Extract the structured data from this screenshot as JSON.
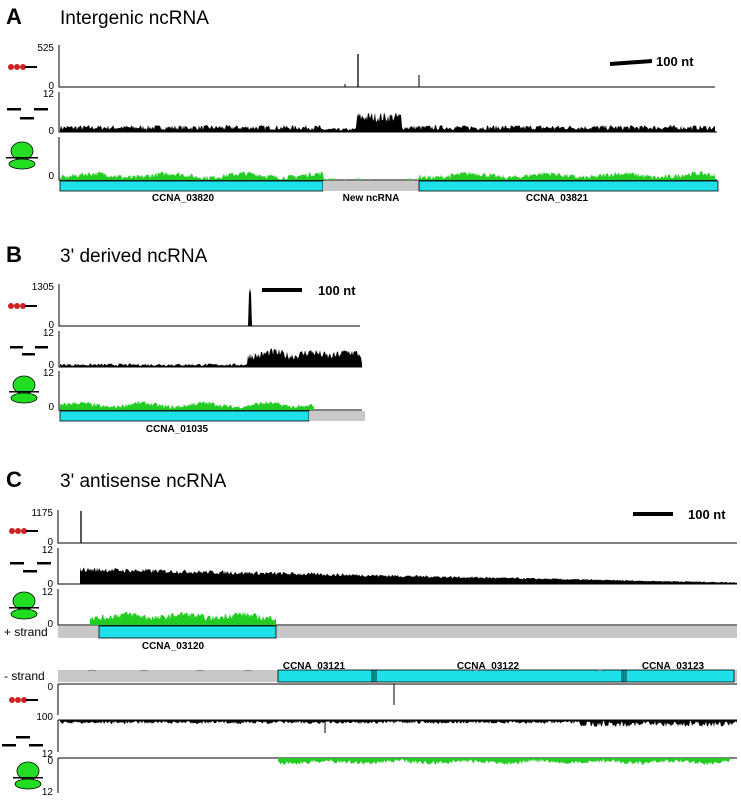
{
  "colors": {
    "ribosome": "#22cc22",
    "gene": "#1ee0e8",
    "ncrna": "#c8c8c8",
    "signal": "#000000",
    "dot": "#cc2222"
  },
  "icons": [
    "tss-capped-read-icon",
    "fragment-reads-icon",
    "ribosome-icon"
  ],
  "panels": {
    "A": {
      "letter": "A",
      "title": "Intergenic ncRNA",
      "t1_max": "525",
      "t1_min": "0",
      "t2_max": "12",
      "t2_min": "0",
      "t3_min": "0",
      "scale_label": "100 nt",
      "genes": [
        {
          "label": "CCNA_03820",
          "kind": "gene"
        },
        {
          "label": "New ncRNA",
          "kind": "ncrna"
        },
        {
          "label": "CCNA_03821",
          "kind": "gene"
        }
      ]
    },
    "B": {
      "letter": "B",
      "title": "3' derived ncRNA",
      "t1_max": "1305",
      "t1_min": "0",
      "t2_max": "12",
      "t2_min": "0",
      "t3_max": "12",
      "t3_min": "0",
      "scale_label": "100 nt",
      "genes": [
        {
          "label": "CCNA_01035",
          "kind": "gene"
        }
      ]
    },
    "C": {
      "letter": "C",
      "title": "3' antisense ncRNA",
      "t1_max": "1175",
      "t1_min": "0",
      "t2_max": "12",
      "t2_min": "0",
      "t3_max": "12",
      "t3_min": "0",
      "plus_strand": "+ strand",
      "minus_strand": "- strand",
      "scale_label": "100 nt",
      "plus_genes": [
        {
          "label": "CCNA_03120",
          "kind": "gene"
        }
      ],
      "minus_genes": [
        {
          "label": "CCNA_03121",
          "kind": "gene"
        },
        {
          "label": "CCNA_03122",
          "kind": "gene"
        },
        {
          "label": "CCNA_03123",
          "kind": "gene"
        }
      ],
      "m1_top": "0",
      "m1_bottom": "100",
      "m2_bottom": "12",
      "m3_top": "0",
      "m3_bottom": "12"
    }
  }
}
